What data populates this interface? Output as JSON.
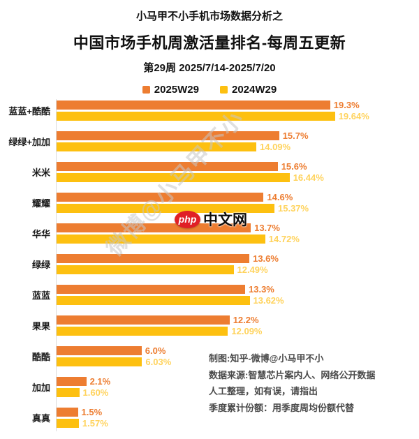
{
  "header": {
    "pretitle": "小马甲不小手机市场数据分析之",
    "title": "中国市场手机周激活量排名-每周五更新",
    "subtitle": "第29周 2025/7/14-2025/7/20"
  },
  "legend": [
    {
      "label": "2025W29",
      "color": "#ED7D31"
    },
    {
      "label": "2024W29",
      "color": "#FDC010"
    }
  ],
  "chart_data": {
    "type": "bar",
    "orientation": "horizontal",
    "unit": "%",
    "xlim": [
      0,
      20.5
    ],
    "categories": [
      "蓝蓝+酷酷",
      "绿绿+加加",
      "米米",
      "耀耀",
      "华华",
      "绿绿",
      "蓝蓝",
      "果果",
      "酷酷",
      "加加",
      "真真"
    ],
    "series": [
      {
        "name": "2025W29",
        "color": "#ED7D31",
        "label_color": "#ED7D31",
        "values": [
          19.3,
          15.7,
          15.6,
          14.6,
          13.7,
          13.6,
          13.3,
          12.2,
          6.0,
          2.1,
          1.5
        ],
        "labels": [
          "19.3%",
          "15.7%",
          "15.6%",
          "14.6%",
          "13.7%",
          "13.6%",
          "13.3%",
          "12.2%",
          "6.0%",
          "2.1%",
          "1.5%"
        ]
      },
      {
        "name": "2024W29",
        "color": "#FDC010",
        "label_color": "#FFD35D",
        "values": [
          19.64,
          14.09,
          16.44,
          15.37,
          14.72,
          12.49,
          13.62,
          12.09,
          6.03,
          1.6,
          1.57
        ],
        "labels": [
          "19.64%",
          "14.09%",
          "16.44%",
          "15.37%",
          "14.72%",
          "12.49%",
          "13.62%",
          "12.09%",
          "6.03%",
          "1.60%",
          "1.57%"
        ]
      }
    ],
    "title": "中国市场手机周激活量排名-每周五更新",
    "legend_position": "top",
    "grid": false
  },
  "watermark": "微博@小马甲不小",
  "logo": {
    "badge": "php",
    "text": "中文网"
  },
  "notes": {
    "line1": "制图:知乎-微博@小马甲不小",
    "line2": "数据来源:智慧芯片案内人、网络公开数据",
    "line3": "人工整理，如有误，请指出",
    "line4": "季度累计份额：用季度周均份额代替"
  }
}
